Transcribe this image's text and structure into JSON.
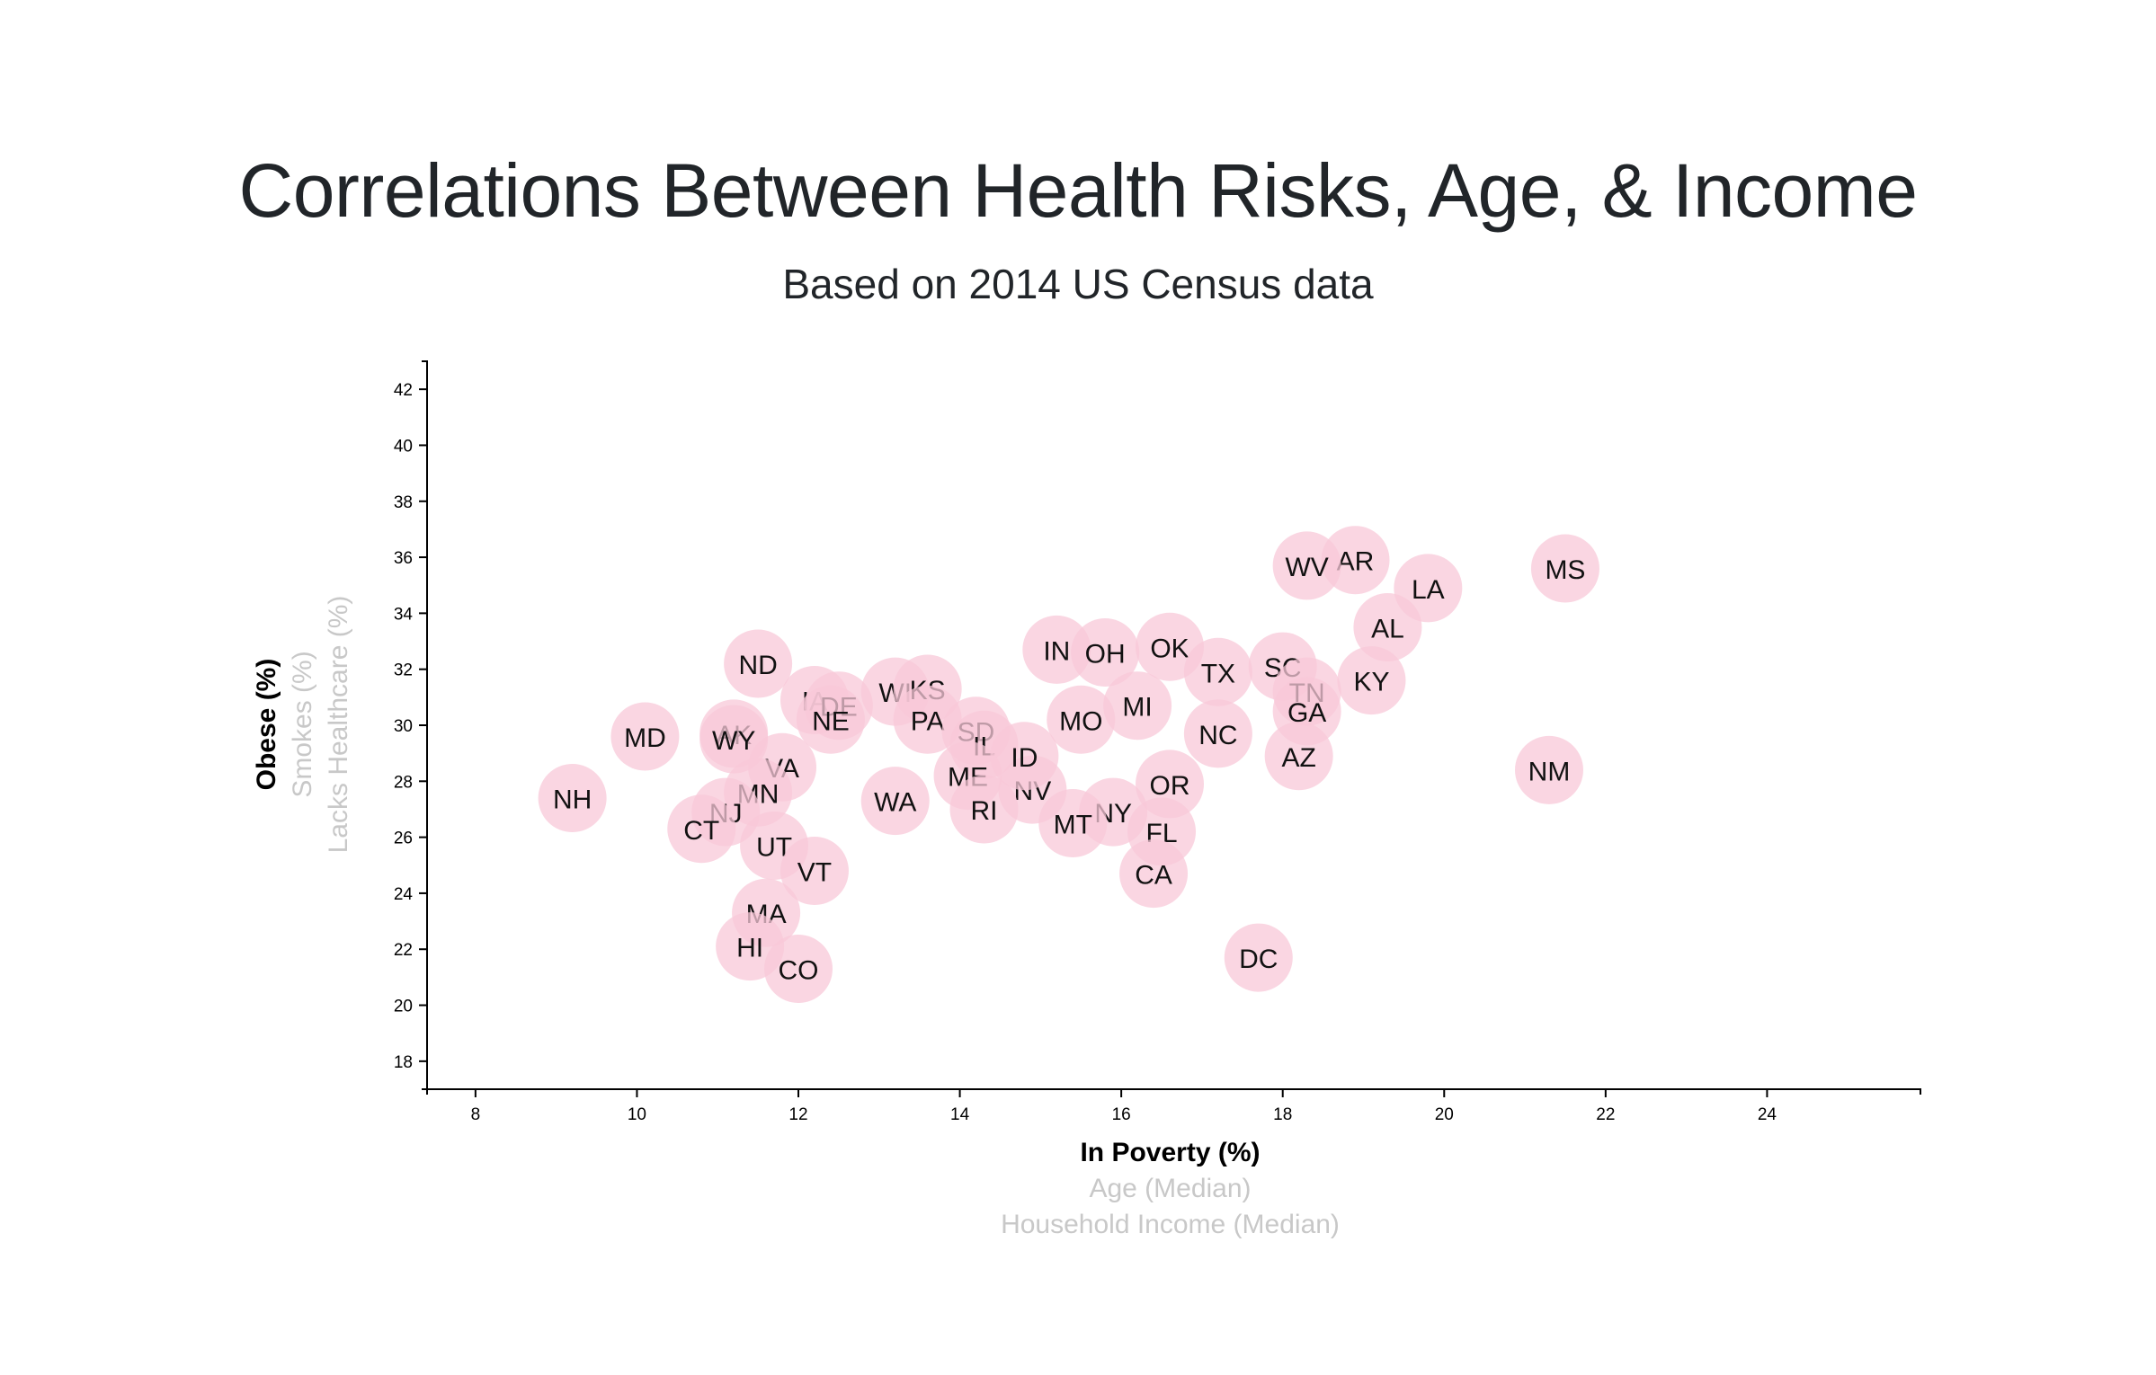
{
  "title": "Correlations Between Health Risks, Age, & Income",
  "subtitle": "Based on 2014 US Census data",
  "chart_data": {
    "type": "scatter",
    "x_axis": {
      "active_label": "In Poverty (%)",
      "inactive_labels": [
        "Age (Median)",
        "Household Income (Median)"
      ],
      "range": [
        7.4,
        25.9
      ],
      "ticks": [
        8,
        10,
        12,
        14,
        16,
        18,
        20,
        22,
        24
      ]
    },
    "y_axis": {
      "active_label": "Obese (%)",
      "inactive_labels": [
        "Smokes (%)",
        "Lacks Healthcare (%)"
      ],
      "range": [
        17,
        43
      ],
      "ticks": [
        18,
        20,
        22,
        24,
        26,
        28,
        30,
        32,
        34,
        36,
        38,
        40,
        42
      ]
    },
    "grid": false,
    "points": [
      {
        "label": "MS",
        "x": 21.5,
        "y": 35.6
      },
      {
        "label": "AR",
        "x": 18.9,
        "y": 35.9
      },
      {
        "label": "WV",
        "x": 18.3,
        "y": 35.7
      },
      {
        "label": "LA",
        "x": 19.8,
        "y": 34.9
      },
      {
        "label": "AL",
        "x": 19.3,
        "y": 33.5
      },
      {
        "label": "KY",
        "x": 19.1,
        "y": 31.6
      },
      {
        "label": "OK",
        "x": 16.6,
        "y": 32.8
      },
      {
        "label": "IN",
        "x": 15.2,
        "y": 32.7
      },
      {
        "label": "OH",
        "x": 15.8,
        "y": 32.6
      },
      {
        "label": "SC",
        "x": 18.0,
        "y": 32.1
      },
      {
        "label": "TX",
        "x": 17.2,
        "y": 31.9
      },
      {
        "label": "TN",
        "x": 18.3,
        "y": 31.2
      },
      {
        "label": "GA",
        "x": 18.3,
        "y": 30.5
      },
      {
        "label": "MI",
        "x": 16.2,
        "y": 30.7
      },
      {
        "label": "MO",
        "x": 15.5,
        "y": 30.2
      },
      {
        "label": "NC",
        "x": 17.2,
        "y": 29.7
      },
      {
        "label": "AZ",
        "x": 18.2,
        "y": 28.9
      },
      {
        "label": "NM",
        "x": 21.3,
        "y": 28.4
      },
      {
        "label": "OR",
        "x": 16.6,
        "y": 27.9
      },
      {
        "label": "NV",
        "x": 14.9,
        "y": 27.7
      },
      {
        "label": "NY",
        "x": 15.9,
        "y": 26.9
      },
      {
        "label": "MT",
        "x": 15.4,
        "y": 26.5
      },
      {
        "label": "FL",
        "x": 16.5,
        "y": 26.2
      },
      {
        "label": "CA",
        "x": 16.4,
        "y": 24.7
      },
      {
        "label": "DC",
        "x": 17.7,
        "y": 21.7
      },
      {
        "label": "ND",
        "x": 11.5,
        "y": 32.2
      },
      {
        "label": "IA",
        "x": 12.2,
        "y": 30.9
      },
      {
        "label": "DE",
        "x": 12.5,
        "y": 30.7
      },
      {
        "label": "NE",
        "x": 12.4,
        "y": 30.2
      },
      {
        "label": "WI",
        "x": 13.2,
        "y": 31.2
      },
      {
        "label": "KS",
        "x": 13.6,
        "y": 31.3
      },
      {
        "label": "PA",
        "x": 13.6,
        "y": 30.2
      },
      {
        "label": "SD",
        "x": 14.2,
        "y": 29.8
      },
      {
        "label": "IL",
        "x": 14.3,
        "y": 29.3
      },
      {
        "label": "ID",
        "x": 14.8,
        "y": 28.9
      },
      {
        "label": "ME",
        "x": 14.1,
        "y": 28.2
      },
      {
        "label": "RI",
        "x": 14.3,
        "y": 27.0
      },
      {
        "label": "MD",
        "x": 10.1,
        "y": 29.6
      },
      {
        "label": "AK",
        "x": 11.2,
        "y": 29.7
      },
      {
        "label": "WY",
        "x": 11.2,
        "y": 29.5
      },
      {
        "label": "VA",
        "x": 11.8,
        "y": 28.5
      },
      {
        "label": "MN",
        "x": 11.5,
        "y": 27.6
      },
      {
        "label": "NJ",
        "x": 11.1,
        "y": 26.9
      },
      {
        "label": "CT",
        "x": 10.8,
        "y": 26.3
      },
      {
        "label": "NH",
        "x": 9.2,
        "y": 27.4
      },
      {
        "label": "WA",
        "x": 13.2,
        "y": 27.3
      },
      {
        "label": "UT",
        "x": 11.7,
        "y": 25.7
      },
      {
        "label": "VT",
        "x": 12.2,
        "y": 24.8
      },
      {
        "label": "MA",
        "x": 11.6,
        "y": 23.3
      },
      {
        "label": "HI",
        "x": 11.4,
        "y": 22.1
      },
      {
        "label": "CO",
        "x": 12.0,
        "y": 21.3
      }
    ]
  }
}
